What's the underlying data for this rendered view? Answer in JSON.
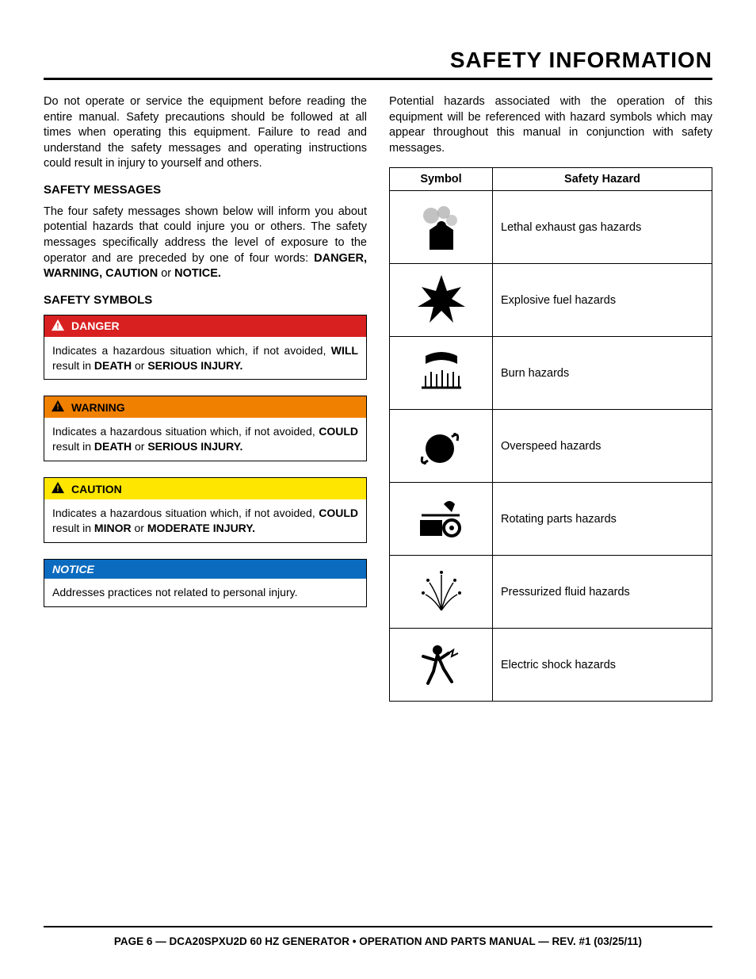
{
  "title": "SAFETY INFORMATION",
  "intro_left": "Do not operate or service the equipment before reading the entire manual. Safety precautions should be followed at all times when operating this equipment. Failure to read and understand the safety messages and operating instructions could result in injury to yourself and others.",
  "safety_messages": {
    "heading": "SAFETY MESSAGES",
    "p1_a": "The four safety messages shown below will inform you about potential hazards that could injure you or others. The safety messages specifically address the level of exposure to the operator and are preceded by one of four words: ",
    "p1_b": "DANGER, WARNING, CAUTION",
    "p1_c": " or ",
    "p1_d": "NOTICE."
  },
  "symbols_heading": "SAFETY SYMBOLS",
  "box_danger": {
    "label": "DANGER",
    "body_a": "Indicates a hazardous situation which, if not avoided, ",
    "body_b": "WILL",
    "body_c": " result in ",
    "body_d": "DEATH",
    "body_e": " or ",
    "body_f": "SERIOUS INJURY.",
    "header_bg": "#d82020",
    "header_fg": "#ffffff",
    "tri_fill": "#ffffff",
    "tri_bang": "#d82020"
  },
  "box_warning": {
    "label": "WARNING",
    "body_a": "Indicates a hazardous situation which, if not avoided, ",
    "body_b": "COULD",
    "body_c": " result in ",
    "body_d": "DEATH",
    "body_e": " or ",
    "body_f": "SERIOUS INJURY.",
    "header_bg": "#f08000",
    "header_fg": "#000000",
    "tri_fill": "#000000",
    "tri_bang": "#f08000"
  },
  "box_caution": {
    "label": "CAUTION",
    "body_a": "Indicates a hazardous situation which, if not avoided, ",
    "body_b": "COULD",
    "body_c": " result in ",
    "body_d": "MINOR",
    "body_e": " or ",
    "body_f": "MODERATE INJURY.",
    "header_bg": "#ffe600",
    "header_fg": "#000000",
    "tri_fill": "#000000",
    "tri_bang": "#ffe600"
  },
  "box_notice": {
    "label": "NOTICE",
    "body": "Addresses practices not related to personal injury.",
    "header_bg": "#0b6bbf",
    "header_fg": "#ffffff"
  },
  "intro_right": "Potential hazards associated with the operation of this equipment will be referenced with hazard symbols which may appear throughout this manual in conjunction with safety messages.",
  "hazard_table": {
    "col_symbol": "Symbol",
    "col_hazard": "Safety Hazard",
    "rows": [
      {
        "label": "Lethal exhaust gas hazards",
        "icon": "exhaust"
      },
      {
        "label": "Explosive fuel hazards",
        "icon": "explosion"
      },
      {
        "label": "Burn hazards",
        "icon": "burn"
      },
      {
        "label": "Overspeed hazards",
        "icon": "overspeed"
      },
      {
        "label": "Rotating parts hazards",
        "icon": "rotating"
      },
      {
        "label": "Pressurized fluid hazards",
        "icon": "pressurized"
      },
      {
        "label": "Electric shock hazards",
        "icon": "shock"
      }
    ]
  },
  "footer": "PAGE 6 — DCA20SPXU2D 60 HZ GENERATOR • OPERATION AND PARTS MANUAL — REV. #1 (03/25/11)"
}
